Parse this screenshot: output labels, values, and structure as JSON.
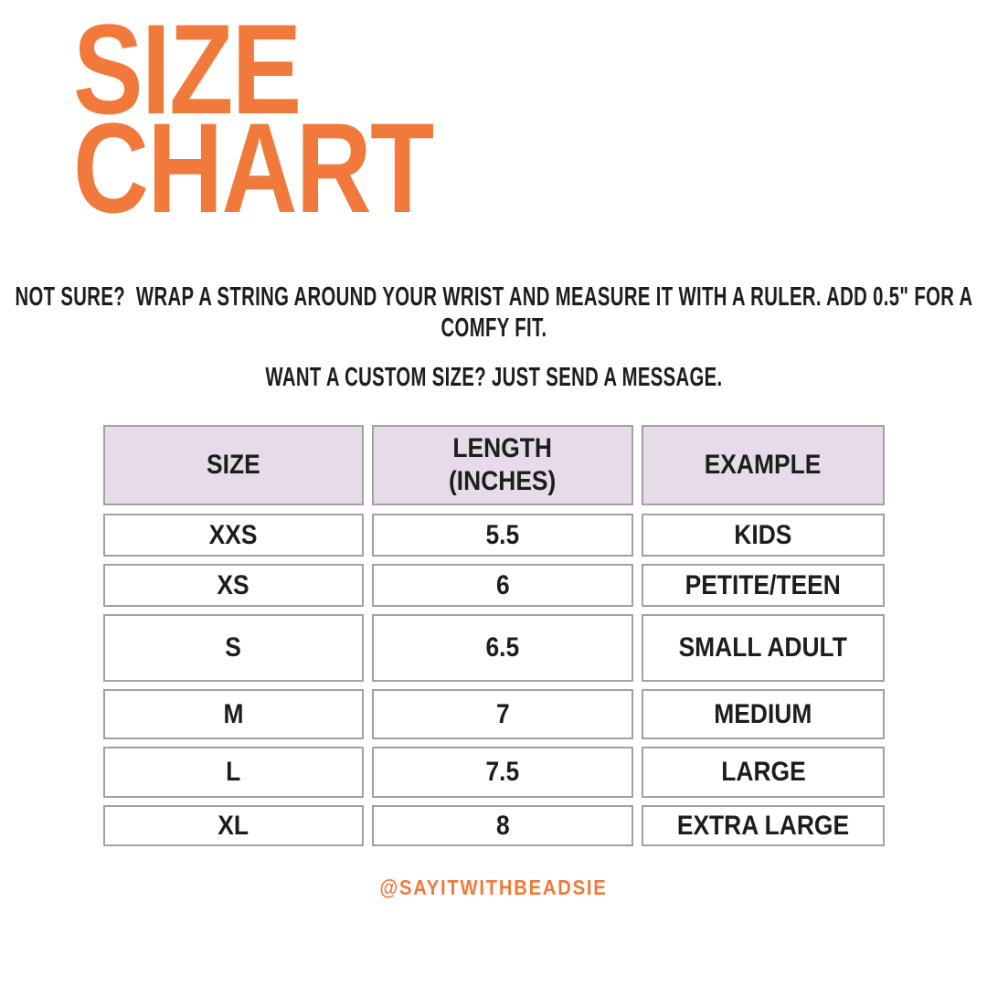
{
  "title": {
    "line1": "SIZE",
    "line2": "CHART"
  },
  "notes": {
    "measure_line1": "NOT SURE?  WRAP A STRING AROUND YOUR WRIST AND MEASURE IT WITH A RULER. ADD 0.5\" FOR A",
    "measure_line2": "COMFY FIT.",
    "custom": "WANT A CUSTOM SIZE? JUST SEND A MESSAGE."
  },
  "table": {
    "columns": [
      {
        "label": "SIZE"
      },
      {
        "label": "LENGTH",
        "label2": "(INCHES)"
      },
      {
        "label": "EXAMPLE"
      }
    ],
    "rows": [
      {
        "size": "XXS",
        "length": "5.5",
        "example": "KIDS"
      },
      {
        "size": "XS",
        "length": "6",
        "example": "PETITE/TEEN"
      },
      {
        "size": "S",
        "length": "6.5",
        "example": "SMALL ADULT"
      },
      {
        "size": "M",
        "length": "7",
        "example": "MEDIUM"
      },
      {
        "size": "L",
        "length": "7.5",
        "example": "LARGE"
      },
      {
        "size": "XL",
        "length": "8",
        "example": "EXTRA LARGE"
      }
    ]
  },
  "footer": {
    "handle": "@SAYITWITHBEADSIE"
  },
  "colors": {
    "accent_orange": "#F1793B",
    "header_lavender": "#E8DBE9",
    "border_gray": "#A3A0A4",
    "text_dark": "#1D1D1F",
    "background": "#FFFFFF"
  }
}
